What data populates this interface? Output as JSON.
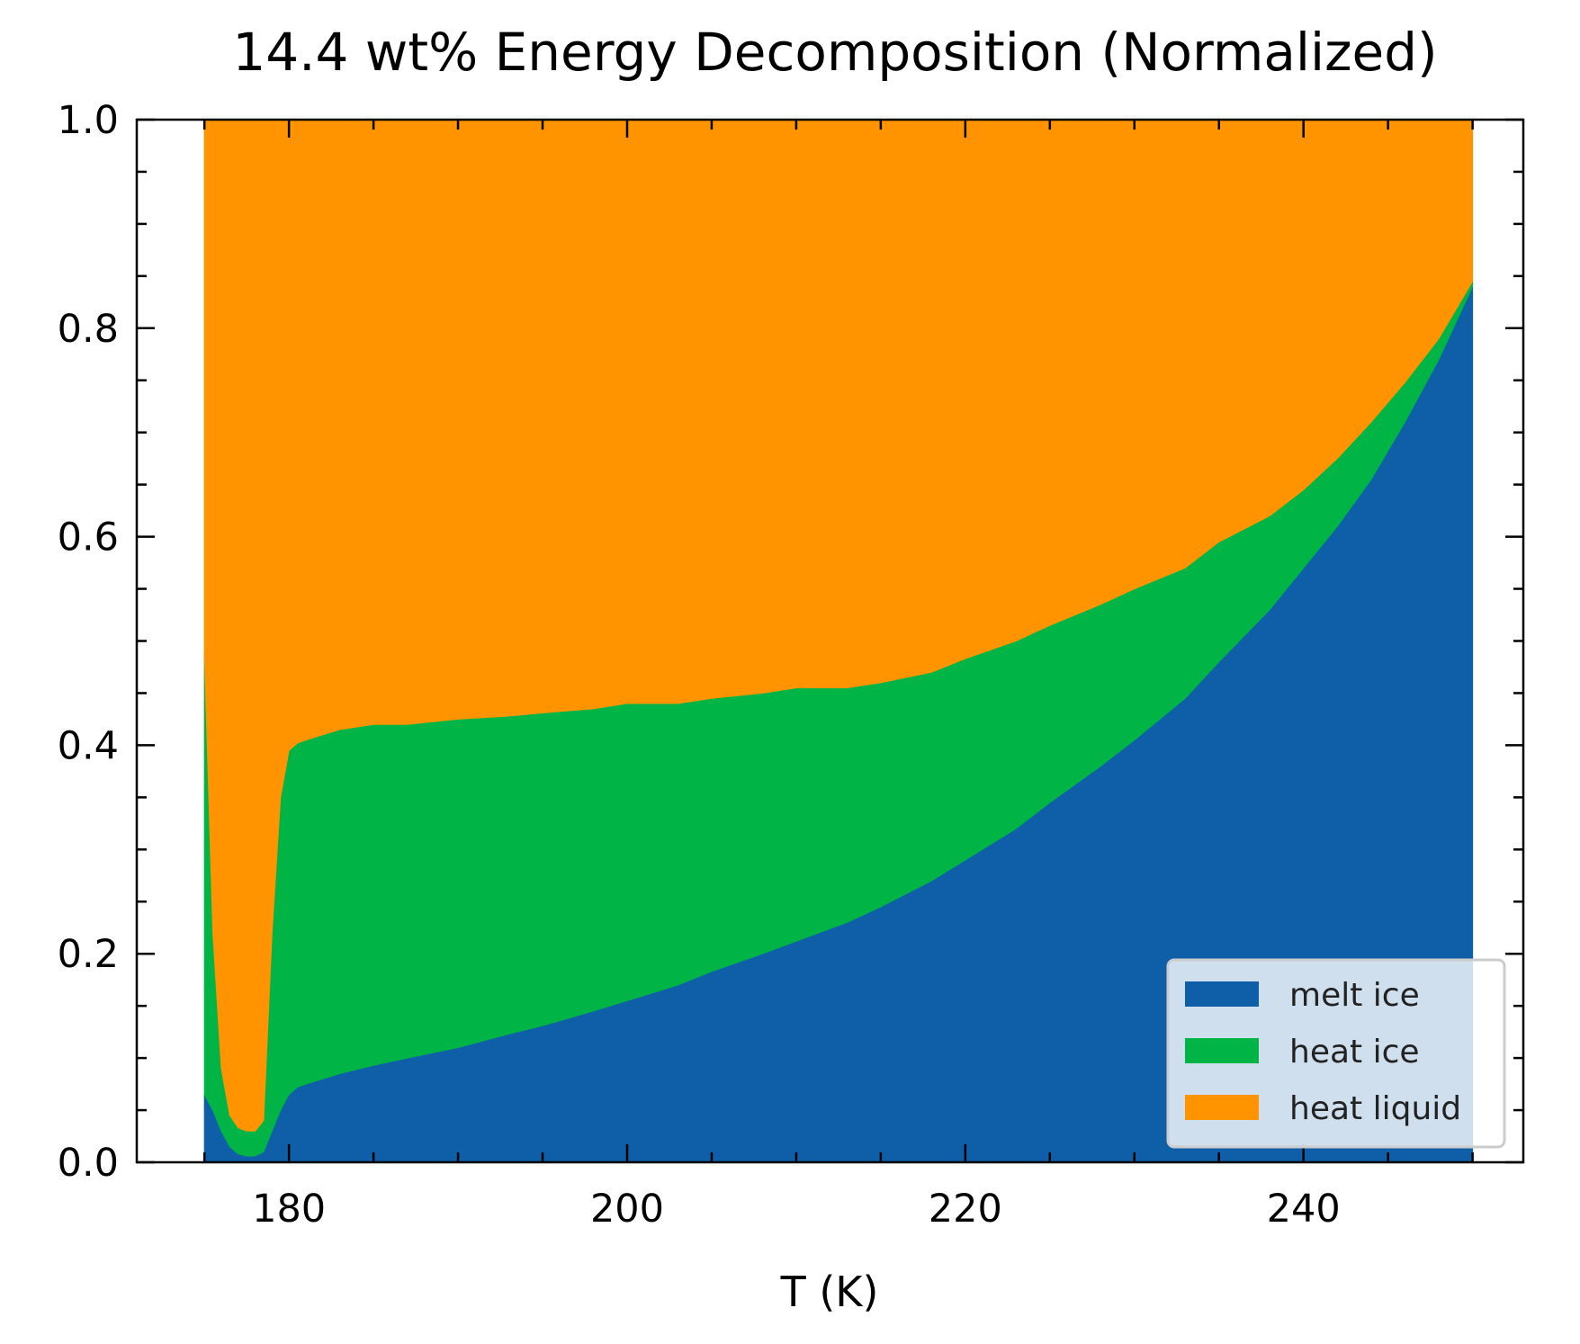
{
  "chart_data": {
    "type": "area",
    "stacked": true,
    "normalized": true,
    "title": "14.4 wt% Energy Decomposition (Normalized)",
    "xlabel": "T (K)",
    "ylabel": "",
    "xlim": [
      171,
      253
    ],
    "ylim": [
      0.0,
      1.0
    ],
    "x_ticks": [
      180,
      200,
      220,
      240
    ],
    "x_tick_labels": [
      "180",
      "200",
      "220",
      "240"
    ],
    "y_ticks": [
      0.0,
      0.2,
      0.4,
      0.6,
      0.8,
      1.0
    ],
    "y_tick_labels": [
      "0.0",
      "0.2",
      "0.4",
      "0.6",
      "0.8",
      "1.0"
    ],
    "grid": false,
    "legend_position": "lower-right",
    "x": [
      175,
      175.5,
      176,
      176.5,
      177,
      177.5,
      178,
      178.5,
      179,
      179.5,
      180,
      180.5,
      181,
      182,
      183,
      185,
      187,
      190,
      193,
      195,
      198,
      200,
      203,
      205,
      208,
      210,
      213,
      215,
      218,
      220,
      223,
      225,
      228,
      230,
      233,
      235,
      238,
      240,
      242,
      244,
      246,
      248,
      250
    ],
    "series": [
      {
        "name": "melt ice",
        "color": "#0f5ea8",
        "values": [
          0.065,
          0.05,
          0.03,
          0.015,
          0.008,
          0.006,
          0.006,
          0.01,
          0.03,
          0.05,
          0.065,
          0.072,
          0.075,
          0.08,
          0.085,
          0.093,
          0.1,
          0.11,
          0.123,
          0.131,
          0.145,
          0.155,
          0.17,
          0.183,
          0.2,
          0.212,
          0.23,
          0.245,
          0.27,
          0.29,
          0.32,
          0.345,
          0.38,
          0.405,
          0.445,
          0.48,
          0.53,
          0.57,
          0.61,
          0.655,
          0.71,
          0.77,
          0.84
        ]
      },
      {
        "name": "heat ice",
        "color": "#00b545",
        "values": [
          0.425,
          0.17,
          0.06,
          0.03,
          0.025,
          0.024,
          0.024,
          0.03,
          0.19,
          0.3,
          0.33,
          0.33,
          0.33,
          0.33,
          0.33,
          0.327,
          0.32,
          0.315,
          0.305,
          0.3,
          0.29,
          0.285,
          0.27,
          0.262,
          0.25,
          0.243,
          0.225,
          0.215,
          0.2,
          0.193,
          0.18,
          0.17,
          0.155,
          0.145,
          0.125,
          0.115,
          0.09,
          0.075,
          0.065,
          0.055,
          0.038,
          0.02,
          0.005
        ]
      },
      {
        "name": "heat liquid",
        "color": "#ff9400",
        "values": [
          0.51,
          0.78,
          0.91,
          0.955,
          0.967,
          0.97,
          0.97,
          0.96,
          0.78,
          0.65,
          0.605,
          0.598,
          0.595,
          0.59,
          0.585,
          0.58,
          0.58,
          0.575,
          0.572,
          0.569,
          0.565,
          0.56,
          0.56,
          0.555,
          0.55,
          0.545,
          0.545,
          0.54,
          0.53,
          0.517,
          0.5,
          0.485,
          0.465,
          0.45,
          0.43,
          0.405,
          0.38,
          0.355,
          0.325,
          0.29,
          0.252,
          0.21,
          0.155
        ]
      }
    ]
  }
}
